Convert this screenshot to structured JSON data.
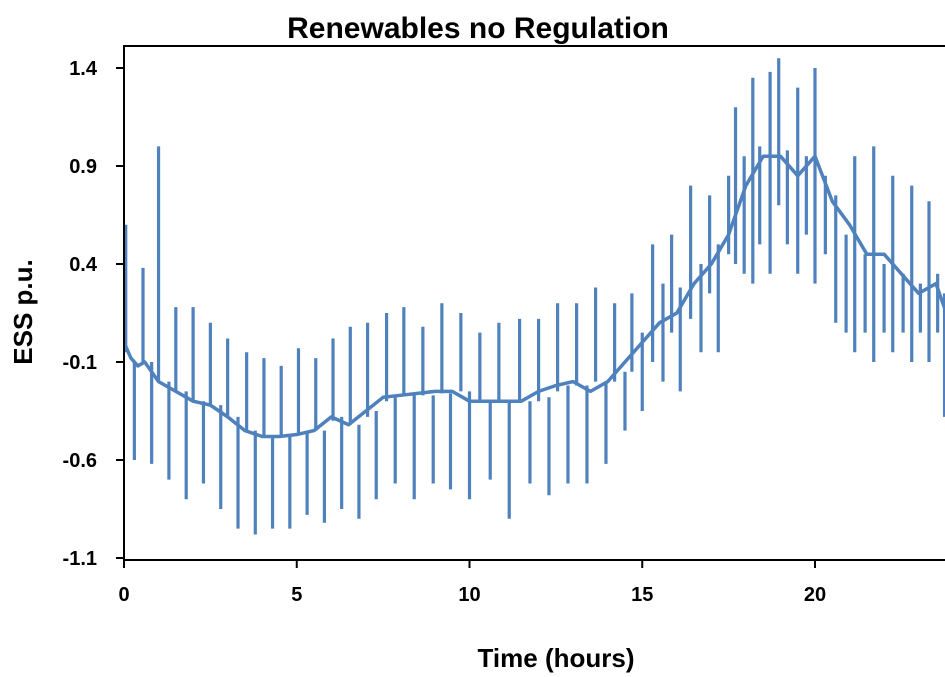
{
  "chart_data": {
    "type": "line",
    "title": "Renewables no Regulation",
    "xlabel": "Time (hours)",
    "ylabel": "ESS p.u.",
    "xlim": [
      0,
      23.8
    ],
    "ylim": [
      -1.1,
      1.55
    ],
    "x_ticks": [
      0,
      5,
      10,
      15,
      20
    ],
    "y_ticks": [
      1.4,
      0.9,
      0.4,
      -0.1,
      -0.6,
      -1.1
    ],
    "x_tick_labels": [
      "0",
      "5",
      "10",
      "15",
      "20"
    ],
    "y_tick_labels": [
      "1.4",
      "0.9",
      "0.4",
      "-0.1",
      "-0.6",
      "-1.1"
    ],
    "grid": false,
    "legend": "none",
    "color": "#4f81bd",
    "series": [
      {
        "baseline": {
          "x": [
            0,
            0.2,
            0.4,
            0.6,
            1.0,
            1.5,
            2.0,
            2.5,
            3.0,
            3.5,
            4.0,
            4.5,
            5.0,
            5.5,
            6.0,
            6.5,
            7.0,
            7.5,
            8.0,
            8.5,
            9.0,
            9.5,
            10.0,
            10.5,
            11.0,
            11.5,
            12.0,
            12.5,
            13.0,
            13.5,
            14.0,
            14.5,
            15.0,
            15.5,
            16.0,
            16.5,
            17.0,
            17.5,
            18.0,
            18.5,
            19.0,
            19.5,
            20.0,
            20.5,
            21.0,
            21.5,
            22.0,
            22.5,
            23.0,
            23.5,
            23.8
          ],
          "y": [
            0.0,
            -0.08,
            -0.12,
            -0.1,
            -0.2,
            -0.25,
            -0.3,
            -0.32,
            -0.38,
            -0.45,
            -0.48,
            -0.48,
            -0.47,
            -0.45,
            -0.38,
            -0.42,
            -0.35,
            -0.28,
            -0.27,
            -0.26,
            -0.25,
            -0.25,
            -0.3,
            -0.3,
            -0.3,
            -0.3,
            -0.25,
            -0.22,
            -0.2,
            -0.25,
            -0.2,
            -0.1,
            0.0,
            0.1,
            0.15,
            0.3,
            0.4,
            0.55,
            0.8,
            0.95,
            0.95,
            0.85,
            0.95,
            0.72,
            0.6,
            0.45,
            0.45,
            0.35,
            0.25,
            0.3,
            0.15
          ]
        },
        "spikes": [
          {
            "x": 0.05,
            "low": -0.05,
            "high": 0.6
          },
          {
            "x": 0.3,
            "low": -0.6,
            "high": -0.1
          },
          {
            "x": 0.55,
            "low": -0.1,
            "high": 0.38
          },
          {
            "x": 0.8,
            "low": -0.62,
            "high": -0.1
          },
          {
            "x": 1.0,
            "low": -0.2,
            "high": 1.0
          },
          {
            "x": 1.3,
            "low": -0.7,
            "high": -0.2
          },
          {
            "x": 1.5,
            "low": -0.25,
            "high": 0.18
          },
          {
            "x": 1.8,
            "low": -0.8,
            "high": -0.25
          },
          {
            "x": 2.0,
            "low": -0.3,
            "high": 0.18
          },
          {
            "x": 2.3,
            "low": -0.72,
            "high": -0.3
          },
          {
            "x": 2.5,
            "low": -0.32,
            "high": 0.1
          },
          {
            "x": 2.8,
            "low": -0.85,
            "high": -0.32
          },
          {
            "x": 3.0,
            "low": -0.38,
            "high": 0.02
          },
          {
            "x": 3.3,
            "low": -0.95,
            "high": -0.38
          },
          {
            "x": 3.55,
            "low": -0.45,
            "high": -0.05
          },
          {
            "x": 3.8,
            "low": -0.98,
            "high": -0.45
          },
          {
            "x": 4.05,
            "low": -0.48,
            "high": -0.08
          },
          {
            "x": 4.3,
            "low": -0.95,
            "high": -0.48
          },
          {
            "x": 4.55,
            "low": -0.48,
            "high": -0.12
          },
          {
            "x": 4.8,
            "low": -0.95,
            "high": -0.47
          },
          {
            "x": 5.05,
            "low": -0.47,
            "high": -0.03
          },
          {
            "x": 5.3,
            "low": -0.88,
            "high": -0.45
          },
          {
            "x": 5.55,
            "low": -0.45,
            "high": -0.08
          },
          {
            "x": 5.8,
            "low": -0.92,
            "high": -0.45
          },
          {
            "x": 6.05,
            "low": -0.4,
            "high": 0.02
          },
          {
            "x": 6.3,
            "low": -0.85,
            "high": -0.38
          },
          {
            "x": 6.55,
            "low": -0.42,
            "high": 0.08
          },
          {
            "x": 6.8,
            "low": -0.9,
            "high": -0.42
          },
          {
            "x": 7.05,
            "low": -0.38,
            "high": 0.1
          },
          {
            "x": 7.3,
            "low": -0.8,
            "high": -0.35
          },
          {
            "x": 7.6,
            "low": -0.3,
            "high": 0.15
          },
          {
            "x": 7.85,
            "low": -0.72,
            "high": -0.28
          },
          {
            "x": 8.1,
            "low": -0.27,
            "high": 0.18
          },
          {
            "x": 8.4,
            "low": -0.8,
            "high": -0.27
          },
          {
            "x": 8.65,
            "low": -0.27,
            "high": 0.08
          },
          {
            "x": 8.95,
            "low": -0.72,
            "high": -0.27
          },
          {
            "x": 9.2,
            "low": -0.26,
            "high": 0.2
          },
          {
            "x": 9.45,
            "low": -0.75,
            "high": -0.26
          },
          {
            "x": 9.75,
            "low": -0.25,
            "high": 0.15
          },
          {
            "x": 10.0,
            "low": -0.8,
            "high": -0.25
          },
          {
            "x": 10.3,
            "low": -0.3,
            "high": 0.05
          },
          {
            "x": 10.6,
            "low": -0.7,
            "high": -0.3
          },
          {
            "x": 10.85,
            "low": -0.3,
            "high": 0.1
          },
          {
            "x": 11.15,
            "low": -0.9,
            "high": -0.3
          },
          {
            "x": 11.45,
            "low": -0.3,
            "high": 0.12
          },
          {
            "x": 11.75,
            "low": -0.72,
            "high": -0.3
          },
          {
            "x": 12.0,
            "low": -0.3,
            "high": 0.12
          },
          {
            "x": 12.3,
            "low": -0.78,
            "high": -0.28
          },
          {
            "x": 12.55,
            "low": -0.25,
            "high": 0.2
          },
          {
            "x": 12.85,
            "low": -0.72,
            "high": -0.22
          },
          {
            "x": 13.1,
            "low": -0.22,
            "high": 0.2
          },
          {
            "x": 13.4,
            "low": -0.72,
            "high": -0.22
          },
          {
            "x": 13.65,
            "low": -0.2,
            "high": 0.28
          },
          {
            "x": 13.95,
            "low": -0.62,
            "high": -0.2
          },
          {
            "x": 14.2,
            "low": -0.2,
            "high": 0.2
          },
          {
            "x": 14.5,
            "low": -0.45,
            "high": -0.15
          },
          {
            "x": 14.7,
            "low": -0.15,
            "high": 0.25
          },
          {
            "x": 15.0,
            "low": -0.35,
            "high": 0.05
          },
          {
            "x": 15.3,
            "low": -0.1,
            "high": 0.5
          },
          {
            "x": 15.6,
            "low": -0.2,
            "high": 0.3
          },
          {
            "x": 15.85,
            "low": 0.05,
            "high": 0.55
          },
          {
            "x": 16.1,
            "low": -0.25,
            "high": 0.28
          },
          {
            "x": 16.4,
            "low": 0.12,
            "high": 0.8
          },
          {
            "x": 16.7,
            "low": -0.05,
            "high": 0.4
          },
          {
            "x": 16.95,
            "low": 0.25,
            "high": 0.75
          },
          {
            "x": 17.2,
            "low": -0.05,
            "high": 0.5
          },
          {
            "x": 17.5,
            "low": 0.45,
            "high": 0.85
          },
          {
            "x": 17.7,
            "low": 0.4,
            "high": 1.2
          },
          {
            "x": 17.95,
            "low": 0.35,
            "high": 0.95
          },
          {
            "x": 18.2,
            "low": 0.3,
            "high": 1.35
          },
          {
            "x": 18.4,
            "low": 0.5,
            "high": 1.0
          },
          {
            "x": 18.7,
            "low": 0.35,
            "high": 1.38
          },
          {
            "x": 18.95,
            "low": 0.7,
            "high": 1.45
          },
          {
            "x": 19.2,
            "low": 0.5,
            "high": 0.98
          },
          {
            "x": 19.5,
            "low": 0.35,
            "high": 1.3
          },
          {
            "x": 19.75,
            "low": 0.55,
            "high": 0.95
          },
          {
            "x": 20.0,
            "low": 0.3,
            "high": 1.4
          },
          {
            "x": 20.3,
            "low": 0.45,
            "high": 0.85
          },
          {
            "x": 20.6,
            "low": 0.1,
            "high": 0.75
          },
          {
            "x": 20.9,
            "low": 0.05,
            "high": 0.55
          },
          {
            "x": 21.15,
            "low": -0.05,
            "high": 0.95
          },
          {
            "x": 21.45,
            "low": 0.05,
            "high": 0.45
          },
          {
            "x": 21.7,
            "low": -0.1,
            "high": 1.0
          },
          {
            "x": 22.0,
            "low": 0.05,
            "high": 0.4
          },
          {
            "x": 22.25,
            "low": -0.05,
            "high": 0.85
          },
          {
            "x": 22.55,
            "low": 0.05,
            "high": 0.35
          },
          {
            "x": 22.8,
            "low": -0.1,
            "high": 0.8
          },
          {
            "x": 23.05,
            "low": 0.05,
            "high": 0.3
          },
          {
            "x": 23.3,
            "low": -0.1,
            "high": 0.72
          },
          {
            "x": 23.55,
            "low": 0.05,
            "high": 0.35
          },
          {
            "x": 23.75,
            "low": -0.38,
            "high": 0.25
          }
        ]
      }
    ]
  }
}
